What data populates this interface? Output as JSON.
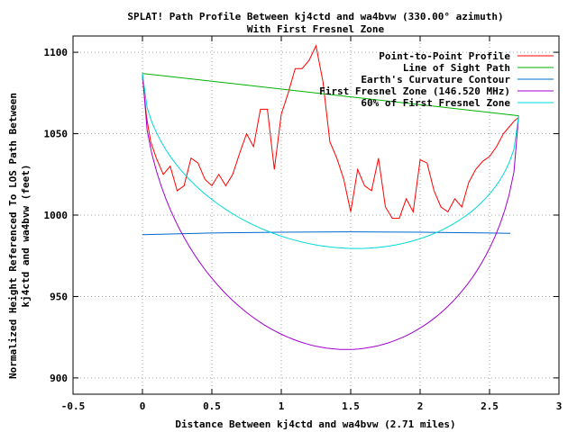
{
  "chart_data": {
    "type": "line",
    "title": "SPLAT! Path Profile Between kj4ctd and wa4bvw (330.00° azimuth)",
    "subtitle": "With First Fresnel Zone",
    "xlabel": "Distance Between kj4ctd and wa4bvw (2.71 miles)",
    "ylabel_line1": "Normalized Height Referenced To LOS Path Between",
    "ylabel_line2": "kj4ctd and wa4bvw (feet)",
    "xlim": [
      -0.5,
      3
    ],
    "ylim": [
      890,
      1110
    ],
    "xticks": [
      -0.5,
      0,
      0.5,
      1,
      1.5,
      2,
      2.5,
      3
    ],
    "xtick_labels": [
      "-0.5",
      "0",
      "0.5",
      "1",
      "1.5",
      "2",
      "2.5",
      "3"
    ],
    "yticks": [
      900,
      950,
      1000,
      1050,
      1100
    ],
    "ytick_labels": [
      "900",
      "950",
      "1000",
      "1050",
      "1100"
    ],
    "grid": true,
    "legend_position": "top-right",
    "series": [
      {
        "name": "Point-to-Point Profile",
        "color": "#ff0000",
        "x": [
          0,
          0.03,
          0.06,
          0.1,
          0.15,
          0.2,
          0.25,
          0.3,
          0.35,
          0.4,
          0.45,
          0.5,
          0.55,
          0.6,
          0.65,
          0.7,
          0.75,
          0.8,
          0.85,
          0.9,
          0.95,
          1.0,
          1.05,
          1.1,
          1.15,
          1.2,
          1.25,
          1.3,
          1.35,
          1.4,
          1.45,
          1.5,
          1.55,
          1.6,
          1.65,
          1.7,
          1.75,
          1.8,
          1.85,
          1.9,
          1.95,
          2.0,
          2.05,
          2.1,
          2.15,
          2.2,
          2.25,
          2.3,
          2.35,
          2.4,
          2.45,
          2.5,
          2.55,
          2.6,
          2.65,
          2.68,
          2.71
        ],
        "y": [
          1085,
          1060,
          1045,
          1035,
          1025,
          1030,
          1015,
          1018,
          1035,
          1032,
          1022,
          1018,
          1025,
          1018,
          1025,
          1038,
          1050,
          1042,
          1065,
          1065,
          1028,
          1062,
          1075,
          1090,
          1090,
          1095,
          1104,
          1082,
          1045,
          1035,
          1022,
          1002,
          1028,
          1018,
          1015,
          1035,
          1005,
          998,
          998,
          1010,
          1002,
          1034,
          1032,
          1015,
          1005,
          1002,
          1010,
          1005,
          1020,
          1028,
          1033,
          1036,
          1042,
          1050,
          1055,
          1058,
          1060
        ]
      },
      {
        "name": "Line of Sight Path",
        "color": "#00b000",
        "x": [
          0,
          2.71
        ],
        "y": [
          1087,
          1061
        ]
      },
      {
        "name": "Earth's Curvature Contour",
        "color": "#0066cc",
        "x": [
          0,
          0.5,
          1,
          1.5,
          2,
          2.5,
          2.65
        ],
        "y": [
          988,
          989,
          989.5,
          989.7,
          989.5,
          989,
          988.8
        ]
      },
      {
        "name": "First Fresnel Zone (146.520 MHz)",
        "color": "#a000d0",
        "type": "fresnel",
        "endpoints_y": [
          1087,
          1061
        ],
        "max_depth": 156
      },
      {
        "name": "60% of First Fresnel Zone",
        "color": "#00d8d8",
        "type": "fresnel",
        "endpoints_y": [
          1087,
          1061
        ],
        "max_depth": 93.6
      }
    ]
  }
}
